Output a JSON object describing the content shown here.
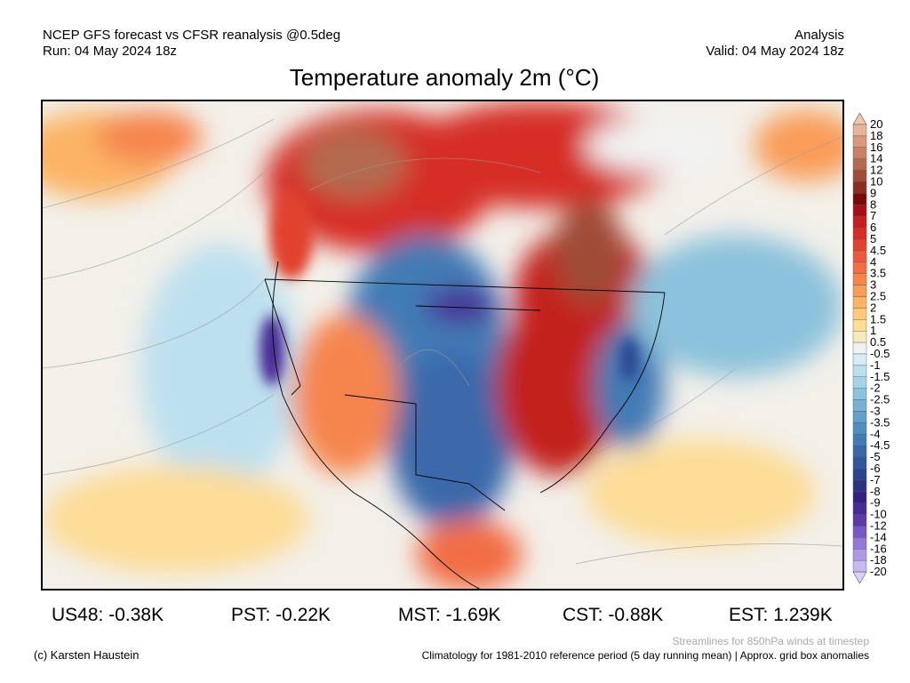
{
  "header": {
    "left_line1": "NCEP GFS forecast vs CFSR reanalysis @0.5deg",
    "left_line2": "Run: 04 May 2024 18z",
    "right_line1": "Analysis",
    "right_line2": "Valid: 04 May 2024 18z",
    "title": "Temperature anomaly 2m (°C)"
  },
  "colorbar": {
    "labels": [
      "20",
      "18",
      "16",
      "14",
      "12",
      "10",
      "9",
      "8",
      "7",
      "6",
      "5",
      "4.5",
      "4",
      "3.5",
      "3",
      "2.5",
      "2",
      "1.5",
      "1",
      "0.5",
      "-0.5",
      "-1",
      "-1.5",
      "-2",
      "-2.5",
      "-3",
      "-3.5",
      "-4",
      "-4.5",
      "-5",
      "-6",
      "-7",
      "-8",
      "-9",
      "-10",
      "-12",
      "-14",
      "-16",
      "-18",
      "-20"
    ],
    "top_arrow_color": "#f0c4ae",
    "bottom_arrow_color": "#d8d4f8",
    "colors": [
      "#e6b49b",
      "#d9987c",
      "#c98066",
      "#b46a50",
      "#9f4c38",
      "#8a2e22",
      "#7a0a0a",
      "#a50f15",
      "#c3201f",
      "#d62d27",
      "#e0432f",
      "#ea5a3a",
      "#f26d44",
      "#f6854d",
      "#f99d59",
      "#fbb466",
      "#fdc97a",
      "#fddc96",
      "#f7ebbc",
      "#f2f2f2",
      "#d6eefa",
      "#bde0ef",
      "#a6d2e6",
      "#8cc2dc",
      "#76b2d4",
      "#62a0ca",
      "#508ec0",
      "#437cb5",
      "#3a69aa",
      "#32579d",
      "#2c4490",
      "#2b3385",
      "#36207f",
      "#4a2a95",
      "#5e3aa8",
      "#7758c4",
      "#9478d8",
      "#ae98e6",
      "#c6baf0"
    ]
  },
  "stats": {
    "us48": "US48: -0.38K",
    "pst": "PST: -0.22K",
    "mst": "MST: -1.69K",
    "cst": "CST: -0.88K",
    "est": "EST: 1.239K"
  },
  "footer": {
    "streamlines_note": "Streamlines for 850hPa winds at timestep",
    "copyright": "(c) Karsten Haustein",
    "climatology_note": "Climatology for 1981-2010 reference period (5 day running mean) | Approx. grid box anomalies"
  }
}
